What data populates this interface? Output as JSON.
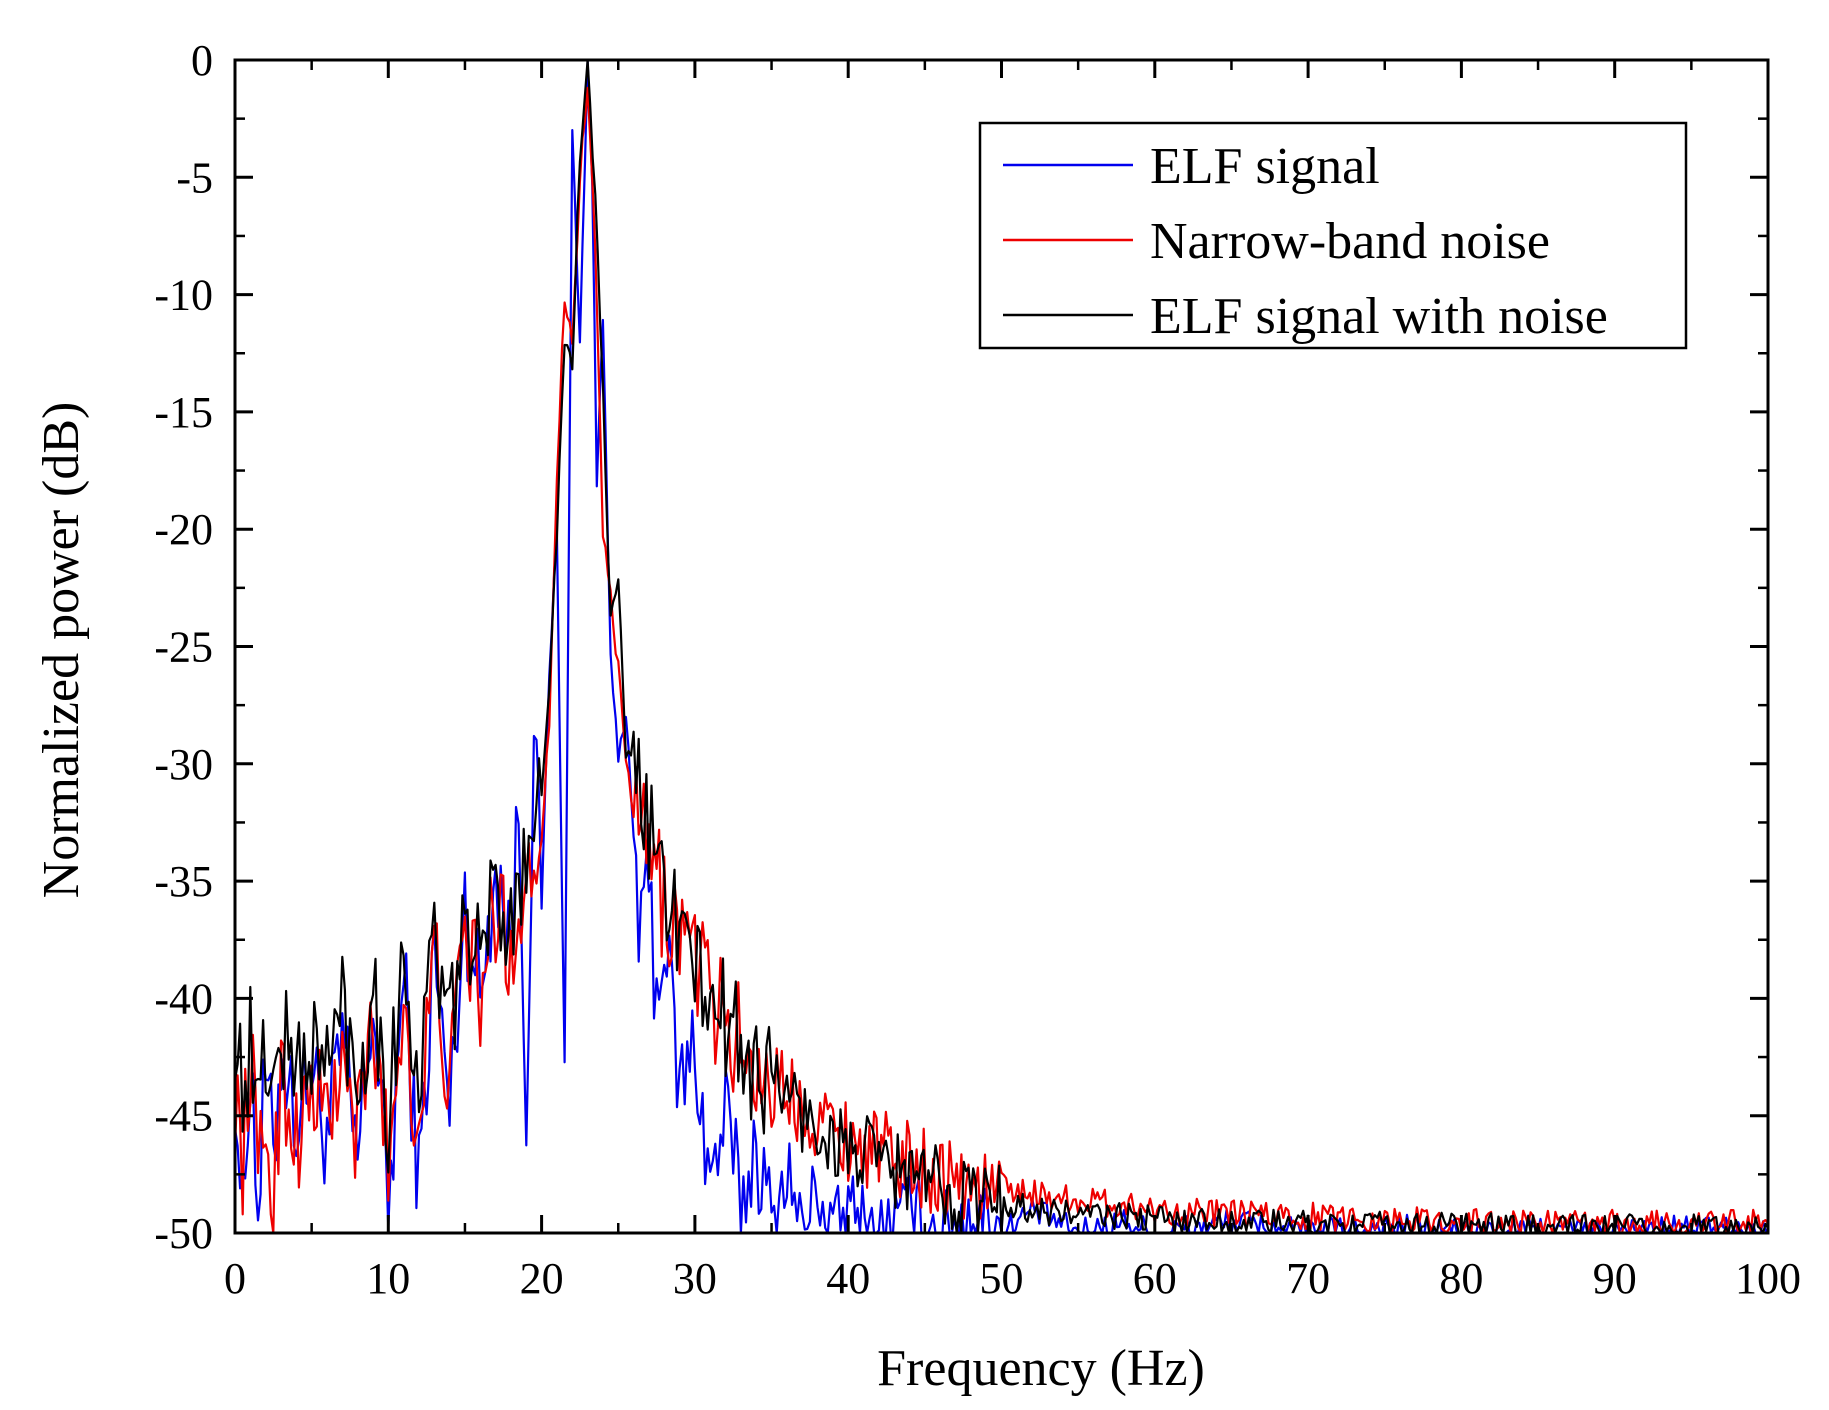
{
  "chart_data": {
    "type": "line",
    "title": "",
    "xlabel": "Frequency (Hz)",
    "ylabel": "Normalized power (dB)",
    "xlim": [
      0,
      100
    ],
    "ylim": [
      -50,
      0
    ],
    "xticks": [
      0,
      10,
      20,
      30,
      40,
      50,
      60,
      70,
      80,
      90,
      100
    ],
    "yticks": [
      0,
      -5,
      -10,
      -15,
      -20,
      -25,
      -30,
      -35,
      -40,
      -45,
      -50
    ],
    "xtick_labels": [
      "0",
      "10",
      "20",
      "30",
      "40",
      "50",
      "60",
      "70",
      "80",
      "90",
      "100"
    ],
    "ytick_labels": [
      "0",
      "-5",
      "-10",
      "-15",
      "-20",
      "-25",
      "-30",
      "-35",
      "-40",
      "-45",
      "-50"
    ],
    "grid": false,
    "legend_position": "top-right",
    "series": [
      {
        "name": "ELF signal",
        "color": "#0000ee",
        "x": [
          0,
          0.5,
          1,
          1.5,
          2,
          2.5,
          3,
          4,
          5,
          6,
          7,
          8,
          9,
          10,
          11,
          12,
          13,
          14,
          15,
          16,
          17,
          18,
          18.5,
          19,
          19.5,
          20,
          20.5,
          21,
          21.5,
          22,
          22.5,
          23,
          23.3,
          23.6,
          24,
          24.5,
          25,
          25.5,
          26,
          26.5,
          27,
          27.5,
          28,
          29,
          30,
          31,
          32,
          33,
          34,
          35,
          36,
          37,
          38,
          39,
          40,
          42,
          44,
          46,
          48,
          50,
          52,
          55,
          58,
          60,
          65,
          70,
          75,
          80,
          85,
          90,
          95,
          100
        ],
        "values": [
          -43,
          -50,
          -42,
          -49,
          -43,
          -47,
          -42,
          -45,
          -43,
          -46,
          -42,
          -47,
          -40,
          -49,
          -39,
          -48,
          -38,
          -45,
          -36,
          -40,
          -34,
          -38,
          -32,
          -44,
          -29,
          -36,
          -26,
          -20,
          -43,
          -3,
          -12,
          0,
          -5,
          -18,
          -11,
          -25,
          -30,
          -28,
          -33,
          -38,
          -35,
          -40,
          -37,
          -44,
          -42,
          -48,
          -45,
          -49,
          -46,
          -50,
          -47,
          -50,
          -48,
          -50,
          -49,
          -50,
          -49,
          -50,
          -49,
          -50,
          -49,
          -50,
          -49.5,
          -50,
          -49.5,
          -50,
          -49.7,
          -50,
          -49.8,
          -50,
          -49.8,
          -50
        ]
      },
      {
        "name": "Narrow-band noise",
        "color": "#ee0000",
        "x": [
          0,
          0.5,
          1,
          1.5,
          2,
          2.5,
          3,
          4,
          5,
          6,
          7,
          8,
          9,
          10,
          11,
          12,
          13,
          14,
          15,
          16,
          17,
          18,
          19,
          20,
          20.5,
          21,
          21.5,
          22,
          22.5,
          23,
          23.5,
          24,
          24.5,
          25,
          25.5,
          26,
          27,
          28,
          29,
          30,
          31,
          32,
          33,
          34,
          35,
          36,
          37,
          38,
          39,
          40,
          42,
          44,
          46,
          48,
          50,
          52,
          55,
          58,
          60,
          65,
          70,
          75,
          80,
          85,
          90,
          95,
          100
        ],
        "values": [
          -44,
          -47,
          -42,
          -48,
          -45,
          -49,
          -43,
          -46,
          -44,
          -45,
          -43,
          -46,
          -41,
          -47,
          -40,
          -46,
          -38,
          -44,
          -37,
          -40,
          -36,
          -38,
          -35,
          -33,
          -28,
          -18,
          -10,
          -12,
          -5,
          -1,
          -8,
          -20,
          -23,
          -26,
          -30,
          -32,
          -34,
          -36,
          -37,
          -38,
          -40,
          -41,
          -42,
          -43,
          -43.5,
          -44,
          -44.5,
          -45,
          -45.5,
          -46,
          -46.5,
          -47,
          -47.5,
          -48,
          -48,
          -48.3,
          -48.6,
          -48.8,
          -49,
          -49.2,
          -49.3,
          -49.4,
          -49.5,
          -49.6,
          -49.6,
          -49.6,
          -49.6
        ]
      },
      {
        "name": "ELF signal with noise",
        "color": "#000000",
        "x": [
          0,
          0.5,
          1,
          1.5,
          2,
          2.5,
          3,
          4,
          5,
          6,
          7,
          8,
          9,
          10,
          11,
          12,
          13,
          14,
          15,
          16,
          17,
          18,
          19,
          20,
          20.5,
          21,
          21.5,
          22,
          22.5,
          23,
          23.5,
          24,
          24.5,
          25,
          25.5,
          26,
          27,
          28,
          29,
          30,
          31,
          32,
          33,
          34,
          35,
          36,
          37,
          38,
          39,
          40,
          42,
          44,
          46,
          48,
          50,
          52,
          55,
          58,
          60,
          65,
          70,
          75,
          80,
          85,
          90,
          95,
          100
        ],
        "values": [
          -41,
          -44,
          -42,
          -45,
          -42,
          -44,
          -41.5,
          -43,
          -42,
          -43,
          -40,
          -44,
          -39,
          -45,
          -38,
          -44,
          -37,
          -42,
          -36,
          -39,
          -35,
          -37,
          -33,
          -31,
          -27,
          -20,
          -12,
          -13,
          -4,
          0,
          -6,
          -14,
          -24,
          -22,
          -30,
          -29,
          -33,
          -35,
          -37,
          -39,
          -40,
          -41,
          -42,
          -43,
          -43.5,
          -44,
          -45,
          -45.5,
          -46,
          -46.5,
          -47,
          -47.5,
          -48,
          -48.5,
          -48.7,
          -49,
          -49.2,
          -49.3,
          -49.4,
          -49.5,
          -49.6,
          -49.7,
          -49.7,
          -49.8,
          -49.8,
          -49.8,
          -49.8
        ]
      }
    ]
  }
}
